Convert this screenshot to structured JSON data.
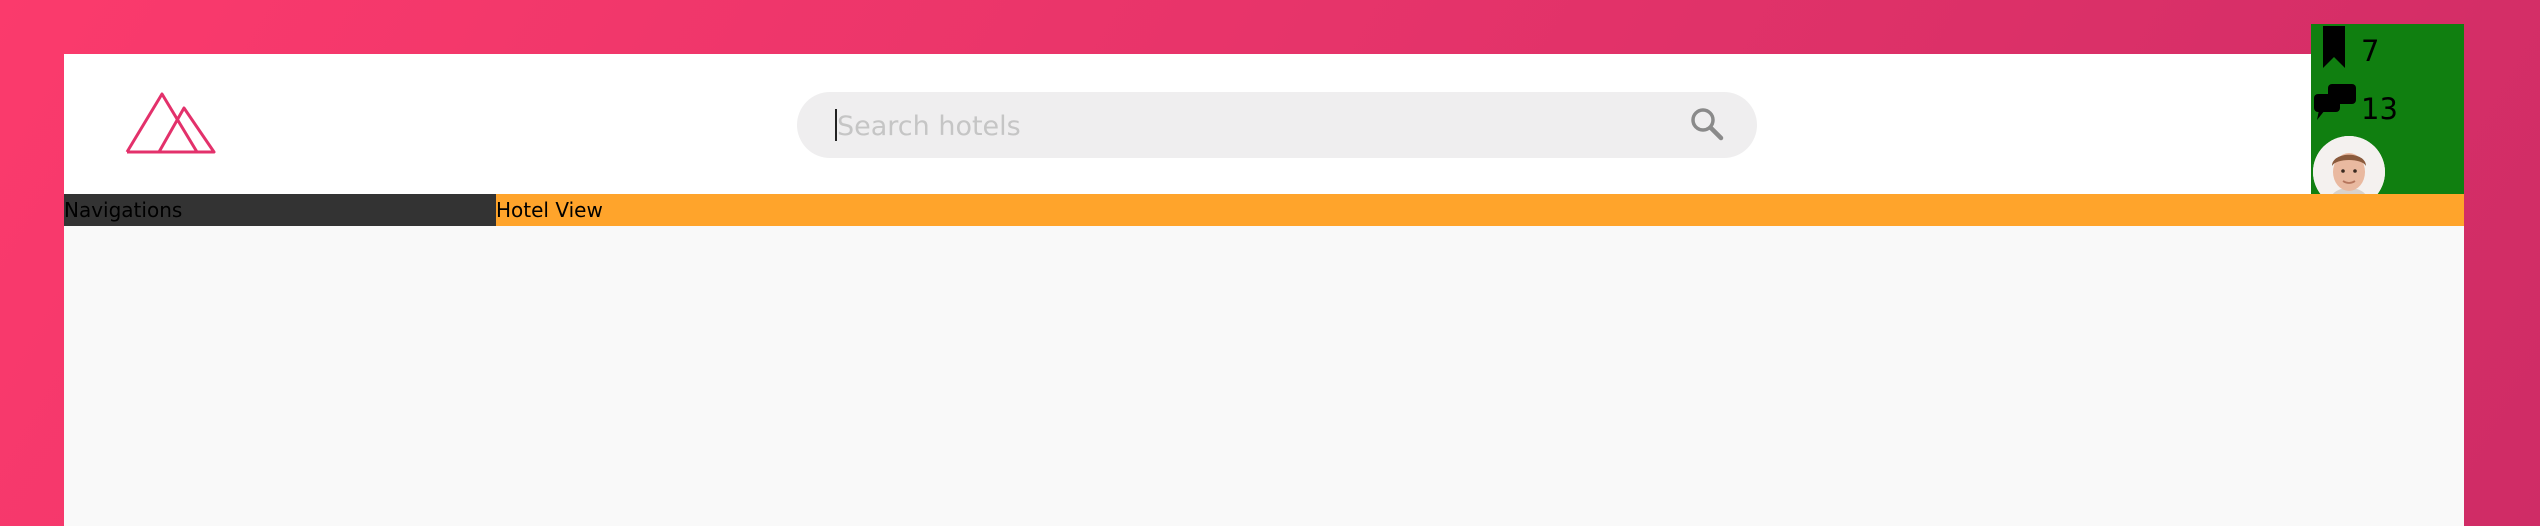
{
  "search": {
    "placeholder": "Search hotels",
    "value": ""
  },
  "user_panel": {
    "bookmarks": "7",
    "messages": "13"
  },
  "navbar": {
    "left_label": "Navigations",
    "right_label": "Hotel View"
  },
  "colors": {
    "background_gradient": [
      "#fb3a6c",
      "#cf2c66"
    ],
    "brand": "#e3316b",
    "navbar_accent": "#ffa42b",
    "navbar_dark": "#333333",
    "user_panel": "#107f10"
  },
  "icons": [
    "mountain-logo",
    "search-icon",
    "bookmark-icon",
    "chat-icon",
    "avatar"
  ]
}
